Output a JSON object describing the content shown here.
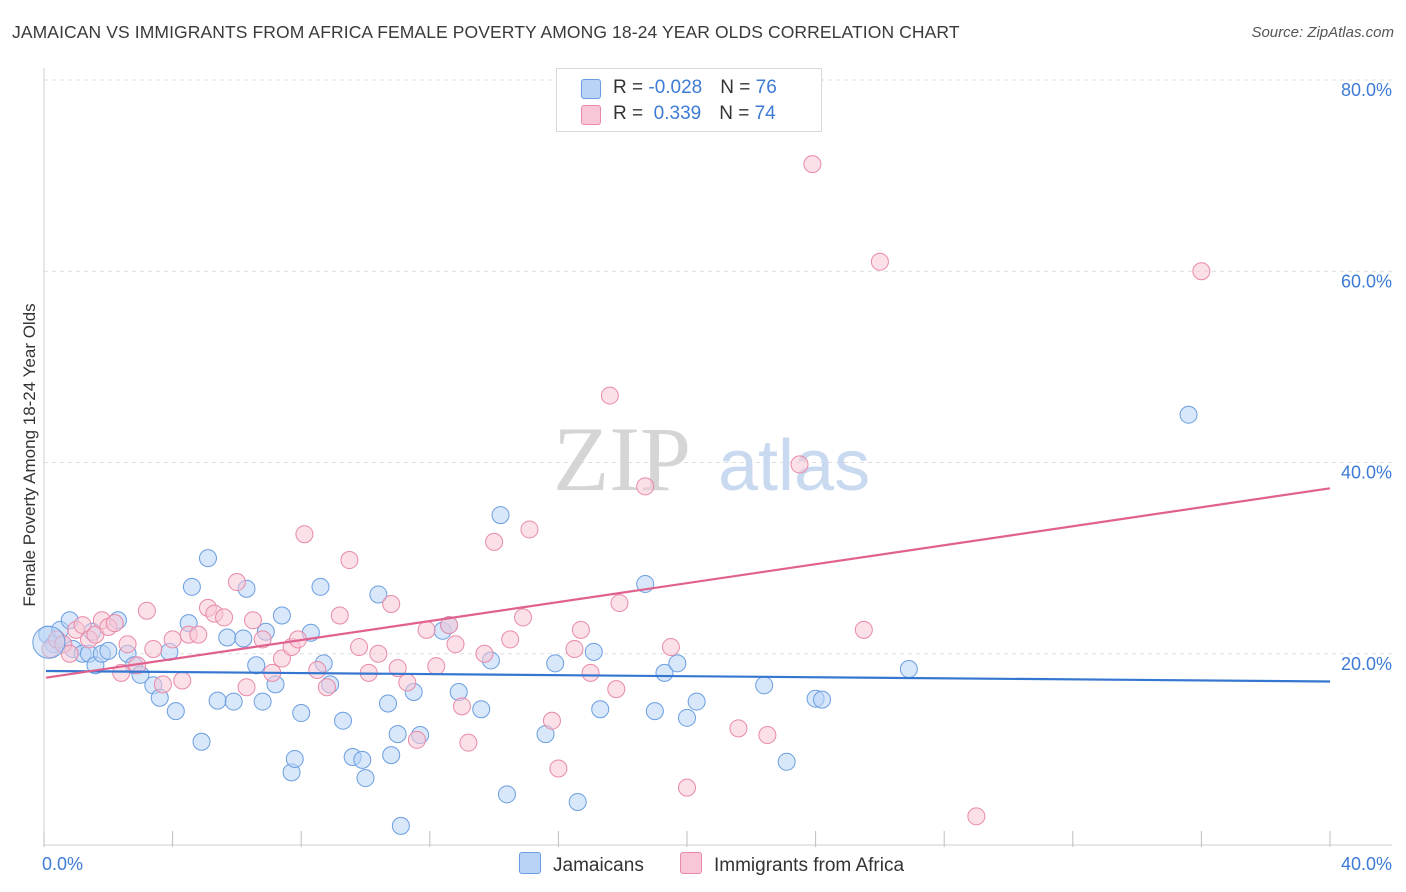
{
  "header": {
    "title": "JAMAICAN VS IMMIGRANTS FROM AFRICA FEMALE POVERTY AMONG 18-24 YEAR OLDS CORRELATION CHART",
    "source": "Source: ZipAtlas.com"
  },
  "watermark": {
    "zip": "ZIP",
    "atlas": "atlas"
  },
  "legend": {
    "rows": [
      {
        "r_label": "R = ",
        "r_value": "-0.028",
        "n_label": "N = ",
        "n_value": "76"
      },
      {
        "r_label": "R = ",
        "r_value": " 0.339",
        "n_label": "N = ",
        "n_value": "74"
      }
    ]
  },
  "bottom_legend": {
    "series_a": "Jamaicans",
    "series_b": "Immigrants from Africa"
  },
  "colors": {
    "blue_fill": "#b8d3f5",
    "blue_stroke": "#6a9ee0",
    "blue_line": "#3576d0",
    "pink_fill": "#f8c6d6",
    "pink_stroke": "#e88aa8",
    "pink_line": "#e0608e",
    "tick_text": "#3d7bd4",
    "grid": "#dedede"
  },
  "chart_data": {
    "type": "scatter",
    "title": "JAMAICAN VS IMMIGRANTS FROM AFRICA FEMALE POVERTY AMONG 18-24 YEAR OLDS CORRELATION CHART",
    "xlabel": "",
    "ylabel": "Female Poverty Among 18-24 Year Olds",
    "xlim": [
      0,
      40
    ],
    "ylim": [
      0,
      80
    ],
    "x_tick_labels": {
      "min": "0.0%",
      "max": "40.0%"
    },
    "y_ticks": [
      20,
      40,
      60,
      80
    ],
    "y_tick_labels": [
      "20.0%",
      "40.0%",
      "60.0%",
      "80.0%"
    ],
    "grid": true,
    "series": [
      {
        "name": "Jamaicans",
        "R": -0.028,
        "N": 76,
        "trend": {
          "x": [
            0,
            40
          ],
          "y": [
            18.2,
            17.1
          ]
        },
        "points": [
          [
            0.1,
            22.0
          ],
          [
            0.3,
            21.0
          ],
          [
            0.5,
            22.5
          ],
          [
            0.6,
            21.0
          ],
          [
            0.8,
            23.5
          ],
          [
            0.9,
            20.5
          ],
          [
            1.2,
            20.0
          ],
          [
            1.4,
            20.0
          ],
          [
            1.5,
            22.3
          ],
          [
            1.6,
            18.8
          ],
          [
            1.8,
            20.0
          ],
          [
            2.0,
            20.3
          ],
          [
            2.3,
            23.5
          ],
          [
            2.6,
            20.0
          ],
          [
            2.8,
            18.8
          ],
          [
            3.0,
            17.8
          ],
          [
            3.4,
            16.7
          ],
          [
            3.6,
            15.4
          ],
          [
            3.9,
            20.2
          ],
          [
            4.1,
            14.0
          ],
          [
            4.6,
            27.0
          ],
          [
            4.5,
            23.2
          ],
          [
            4.9,
            10.8
          ],
          [
            5.1,
            30.0
          ],
          [
            5.4,
            15.1
          ],
          [
            5.7,
            21.7
          ],
          [
            5.9,
            15.0
          ],
          [
            6.2,
            21.6
          ],
          [
            6.3,
            26.8
          ],
          [
            6.6,
            18.8
          ],
          [
            6.8,
            15.0
          ],
          [
            6.9,
            22.3
          ],
          [
            7.2,
            16.8
          ],
          [
            7.4,
            24.0
          ],
          [
            7.7,
            7.6
          ],
          [
            7.8,
            9.0
          ],
          [
            8.0,
            13.8
          ],
          [
            8.3,
            22.2
          ],
          [
            8.6,
            27.0
          ],
          [
            8.7,
            19.0
          ],
          [
            8.9,
            16.8
          ],
          [
            9.3,
            13.0
          ],
          [
            9.6,
            9.2
          ],
          [
            9.9,
            8.9
          ],
          [
            10.0,
            7.0
          ],
          [
            10.4,
            26.2
          ],
          [
            10.7,
            14.8
          ],
          [
            10.8,
            9.4
          ],
          [
            11.0,
            11.6
          ],
          [
            11.1,
            2.0
          ],
          [
            11.5,
            16.0
          ],
          [
            11.7,
            11.5
          ],
          [
            12.4,
            22.4
          ],
          [
            12.6,
            23.0
          ],
          [
            12.9,
            16.0
          ],
          [
            13.6,
            14.2
          ],
          [
            13.9,
            19.3
          ],
          [
            14.2,
            34.5
          ],
          [
            14.4,
            5.3
          ],
          [
            15.6,
            11.6
          ],
          [
            15.9,
            19.0
          ],
          [
            16.6,
            4.5
          ],
          [
            17.1,
            20.2
          ],
          [
            17.3,
            14.2
          ],
          [
            18.7,
            27.3
          ],
          [
            19.0,
            14.0
          ],
          [
            19.3,
            18.0
          ],
          [
            19.7,
            19.0
          ],
          [
            20.0,
            13.3
          ],
          [
            20.3,
            15.0
          ],
          [
            22.4,
            16.7
          ],
          [
            23.1,
            8.7
          ],
          [
            24.0,
            15.3
          ],
          [
            24.2,
            15.2
          ],
          [
            26.9,
            18.4
          ],
          [
            35.6,
            45.0
          ]
        ]
      },
      {
        "name": "Immigrants from Africa",
        "R": 0.339,
        "N": 74,
        "trend": {
          "x": [
            0,
            40
          ],
          "y": [
            17.5,
            37.3
          ]
        },
        "points": [
          [
            0.2,
            20.5
          ],
          [
            0.4,
            21.5
          ],
          [
            0.6,
            21.0
          ],
          [
            0.8,
            20.0
          ],
          [
            1.0,
            22.5
          ],
          [
            1.2,
            23.0
          ],
          [
            1.4,
            21.5
          ],
          [
            1.6,
            22.0
          ],
          [
            1.8,
            23.5
          ],
          [
            2.0,
            22.8
          ],
          [
            2.2,
            23.2
          ],
          [
            2.4,
            18.0
          ],
          [
            2.6,
            21.0
          ],
          [
            2.9,
            18.8
          ],
          [
            3.2,
            24.5
          ],
          [
            3.4,
            20.5
          ],
          [
            3.7,
            16.8
          ],
          [
            4.0,
            21.5
          ],
          [
            4.3,
            17.2
          ],
          [
            4.5,
            22.0
          ],
          [
            4.8,
            22.0
          ],
          [
            5.1,
            24.8
          ],
          [
            5.3,
            24.2
          ],
          [
            5.6,
            23.8
          ],
          [
            6.0,
            27.5
          ],
          [
            6.3,
            16.5
          ],
          [
            6.5,
            23.5
          ],
          [
            6.8,
            21.5
          ],
          [
            7.1,
            18.0
          ],
          [
            7.4,
            19.5
          ],
          [
            7.7,
            20.7
          ],
          [
            7.9,
            21.5
          ],
          [
            8.1,
            32.5
          ],
          [
            8.5,
            18.3
          ],
          [
            8.8,
            16.5
          ],
          [
            9.2,
            24.0
          ],
          [
            9.5,
            29.8
          ],
          [
            9.8,
            20.7
          ],
          [
            10.1,
            18.0
          ],
          [
            10.4,
            20.0
          ],
          [
            10.8,
            25.2
          ],
          [
            11.0,
            18.5
          ],
          [
            11.3,
            17.0
          ],
          [
            11.6,
            11.0
          ],
          [
            11.9,
            22.5
          ],
          [
            12.2,
            18.7
          ],
          [
            12.6,
            23.0
          ],
          [
            12.8,
            21.0
          ],
          [
            13.0,
            14.5
          ],
          [
            13.2,
            10.7
          ],
          [
            13.7,
            20.0
          ],
          [
            14.0,
            31.7
          ],
          [
            14.5,
            21.5
          ],
          [
            14.9,
            23.8
          ],
          [
            15.1,
            33.0
          ],
          [
            15.8,
            13.0
          ],
          [
            16.0,
            8.0
          ],
          [
            16.5,
            20.5
          ],
          [
            16.7,
            22.5
          ],
          [
            17.0,
            18.0
          ],
          [
            17.6,
            47.0
          ],
          [
            17.8,
            16.3
          ],
          [
            17.9,
            25.3
          ],
          [
            18.7,
            37.5
          ],
          [
            19.5,
            20.7
          ],
          [
            20.0,
            6.0
          ],
          [
            21.6,
            12.2
          ],
          [
            22.5,
            11.5
          ],
          [
            23.5,
            39.8
          ],
          [
            23.9,
            71.2
          ],
          [
            25.5,
            22.5
          ],
          [
            26.0,
            61.0
          ],
          [
            29.0,
            3.0
          ],
          [
            36.0,
            60.0
          ]
        ]
      }
    ]
  }
}
